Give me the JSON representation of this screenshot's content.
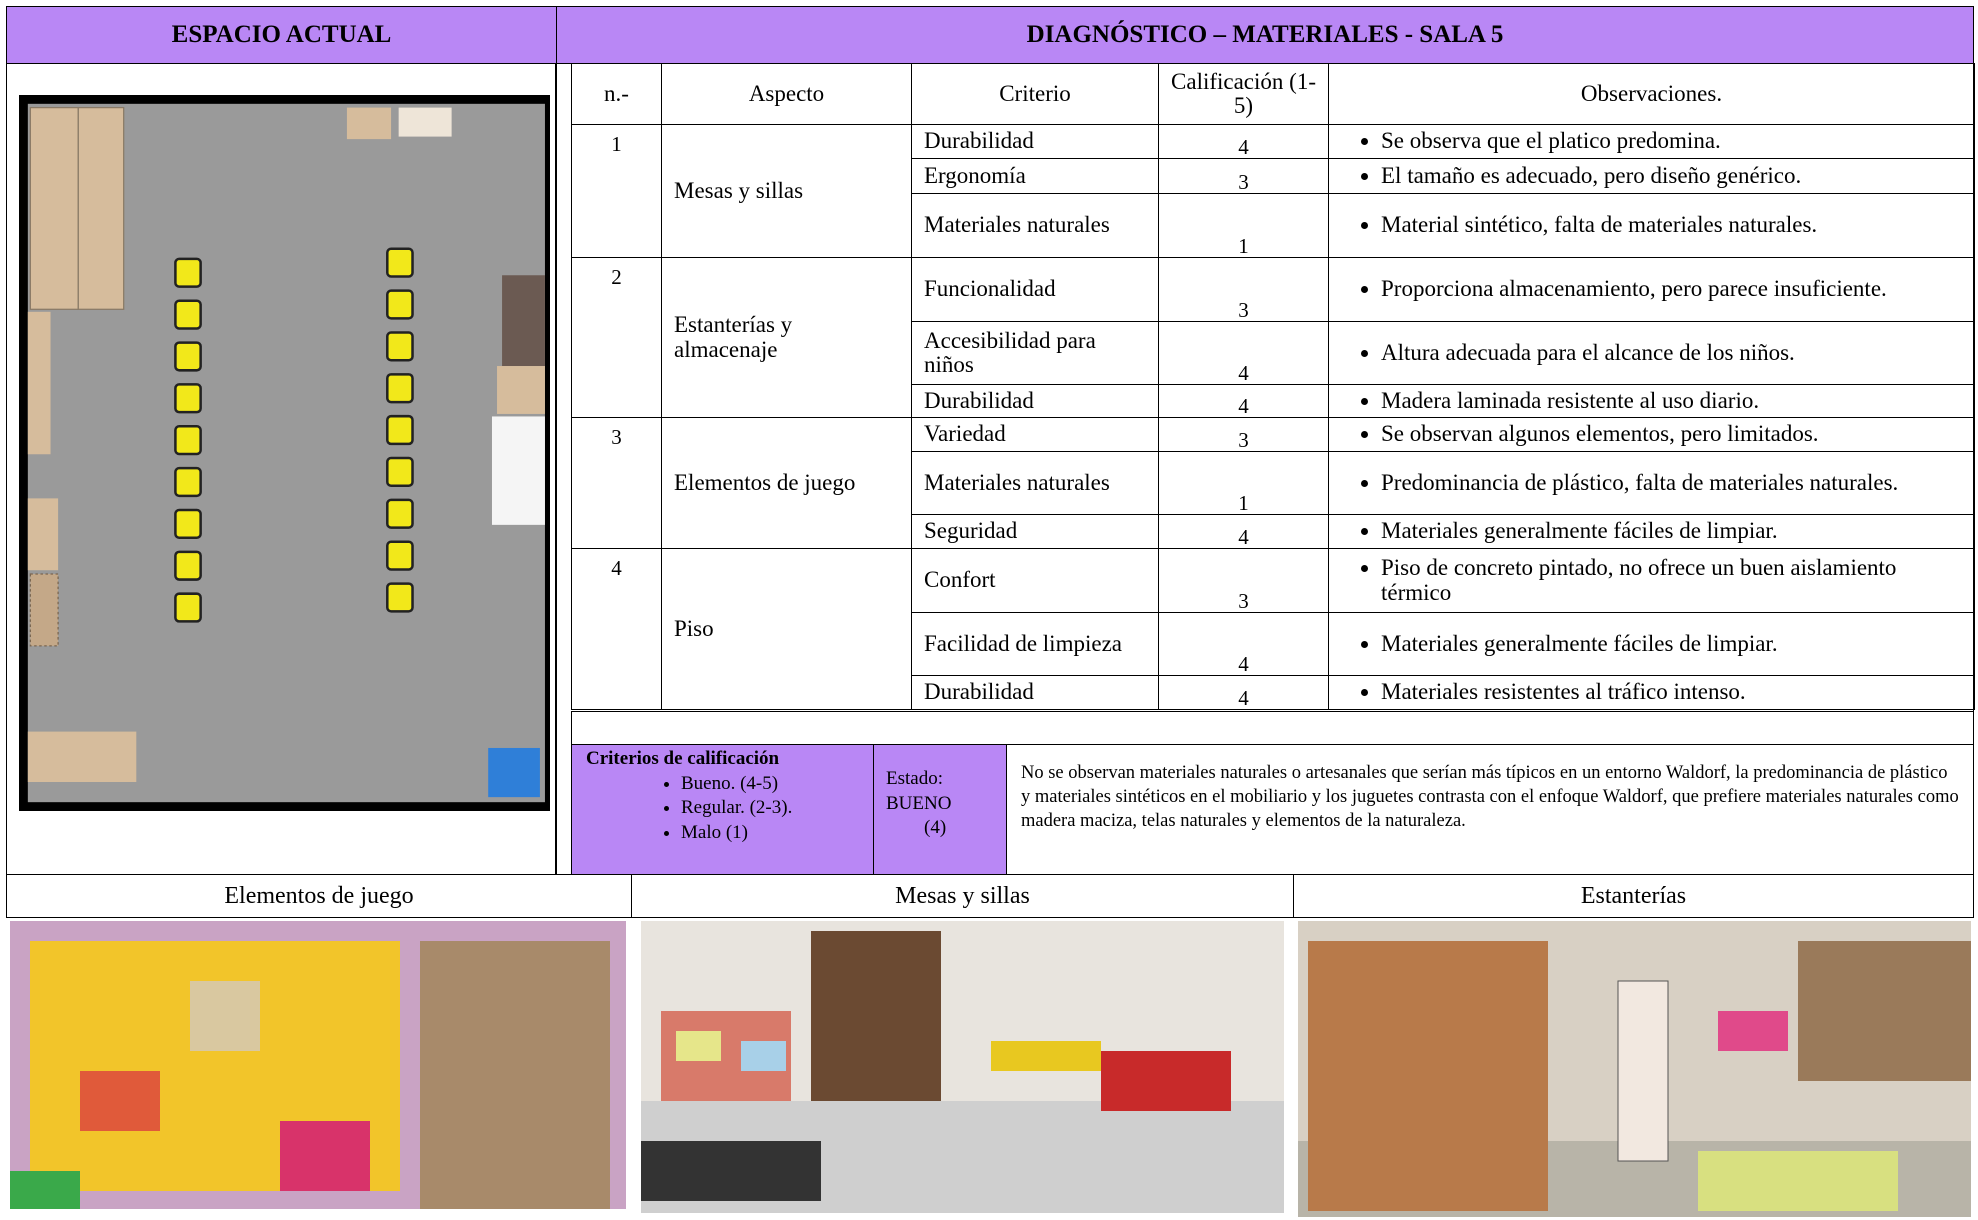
{
  "header": {
    "left_title": "ESPACIO ACTUAL",
    "right_title": "DIAGNÓSTICO – MATERIALES - SALA 5"
  },
  "table": {
    "columns": [
      "n.-",
      "Aspecto",
      "Criterio",
      "Calificación (1-5)",
      "Observaciones."
    ],
    "groups": [
      {
        "number": "1",
        "aspect": "Mesas y sillas",
        "rows": [
          {
            "criterion": "Durabilidad",
            "score": "4",
            "observation": "Se observa que el platico predomina."
          },
          {
            "criterion": "Ergonomía",
            "score": "3",
            "observation": "El tamaño es adecuado, pero diseño genérico."
          },
          {
            "criterion": "Materiales naturales",
            "score": "1",
            "observation": "Material sintético, falta de materiales naturales."
          }
        ]
      },
      {
        "number": "2",
        "aspect": "Estanterías y almacenaje",
        "rows": [
          {
            "criterion": "Funcionalidad",
            "score": "3",
            "observation": "Proporciona almacenamiento, pero parece insuficiente."
          },
          {
            "criterion": "Accesibilidad para niños",
            "score": "4",
            "observation": "Altura adecuada para el alcance de los niños."
          },
          {
            "criterion": "Durabilidad",
            "score": "4",
            "observation": "Madera laminada resistente al uso diario."
          }
        ]
      },
      {
        "number": "3",
        "aspect": "Elementos de juego",
        "rows": [
          {
            "criterion": "Variedad",
            "score": "3",
            "observation": "Se observan algunos elementos, pero limitados."
          },
          {
            "criterion": "Materiales naturales",
            "score": "1",
            "observation": "Predominancia de plástico, falta de materiales naturales."
          },
          {
            "criterion": "Seguridad",
            "score": "4",
            "observation": "Materiales generalmente fáciles de limpiar."
          }
        ]
      },
      {
        "number": "4",
        "aspect": "Piso",
        "rows": [
          {
            "criterion": "Confort",
            "score": "3",
            "observation": "Piso de concreto pintado, no ofrece un buen aislamiento térmico"
          },
          {
            "criterion": "Facilidad de limpieza",
            "score": "4",
            "observation": "Materiales generalmente fáciles de limpiar."
          },
          {
            "criterion": "Durabilidad",
            "score": "4",
            "observation": "Materiales resistentes al tráfico intenso."
          }
        ]
      }
    ]
  },
  "legend": {
    "title": "Criterios de calificación",
    "items": [
      "Bueno. (4-5)",
      "Regular. (2-3).",
      "Malo (1)"
    ]
  },
  "status": {
    "label": "Estado:",
    "value": "BUENO",
    "score": "(4)"
  },
  "note": "No se observan materiales naturales o artesanales que serían más típicos en un entorno Waldorf, la predominancia de plástico y materiales sintéticos en el mobiliario y los juguetes contrasta con el enfoque Waldorf, que prefiere materiales naturales como madera maciza, telas naturales y elementos de la naturaleza.",
  "photos": [
    "Elementos de juego",
    "Mesas y sillas",
    "Estanterías"
  ]
}
